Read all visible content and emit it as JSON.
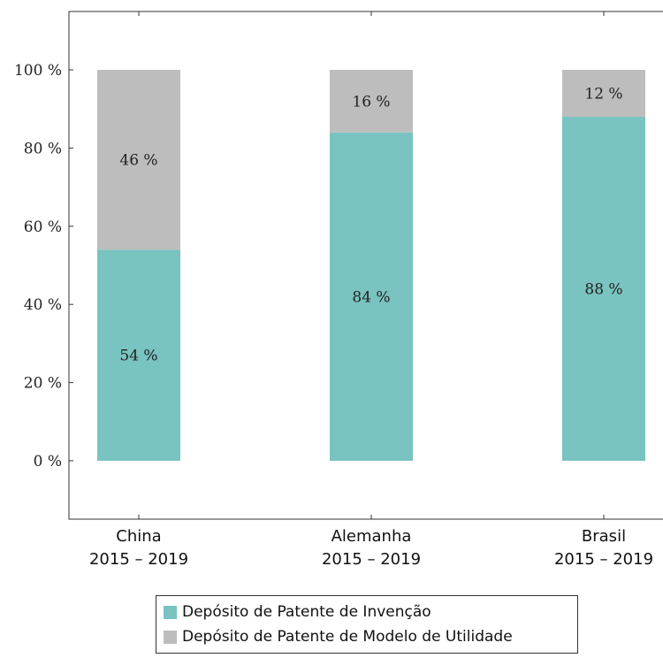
{
  "chart_data": {
    "type": "bar",
    "stacked": true,
    "categories": [
      [
        "China",
        "2015 – 2019"
      ],
      [
        "Alemanha",
        "2015 – 2019"
      ],
      [
        "Brasil",
        "2015 – 2019"
      ]
    ],
    "series": [
      {
        "name": "Depósito de Patente de Invenção",
        "values": [
          54,
          84,
          88
        ],
        "labels": [
          "54 %",
          "84 %",
          "88 %"
        ],
        "color": "#79c3c0"
      },
      {
        "name": "Depósito de Patente de Modelo de Utilidade",
        "values": [
          46,
          16,
          12
        ],
        "labels": [
          "46 %",
          "16 %",
          "12 %"
        ],
        "color": "#bdbdbd"
      }
    ],
    "yticks": [
      "0 %",
      "20 %",
      "40 %",
      "60 %",
      "80 %",
      "100 %"
    ],
    "ytick_values": [
      0,
      20,
      40,
      60,
      80,
      100
    ],
    "ylim": [
      -15,
      115
    ],
    "grid": false,
    "legend_position": "bottom"
  }
}
